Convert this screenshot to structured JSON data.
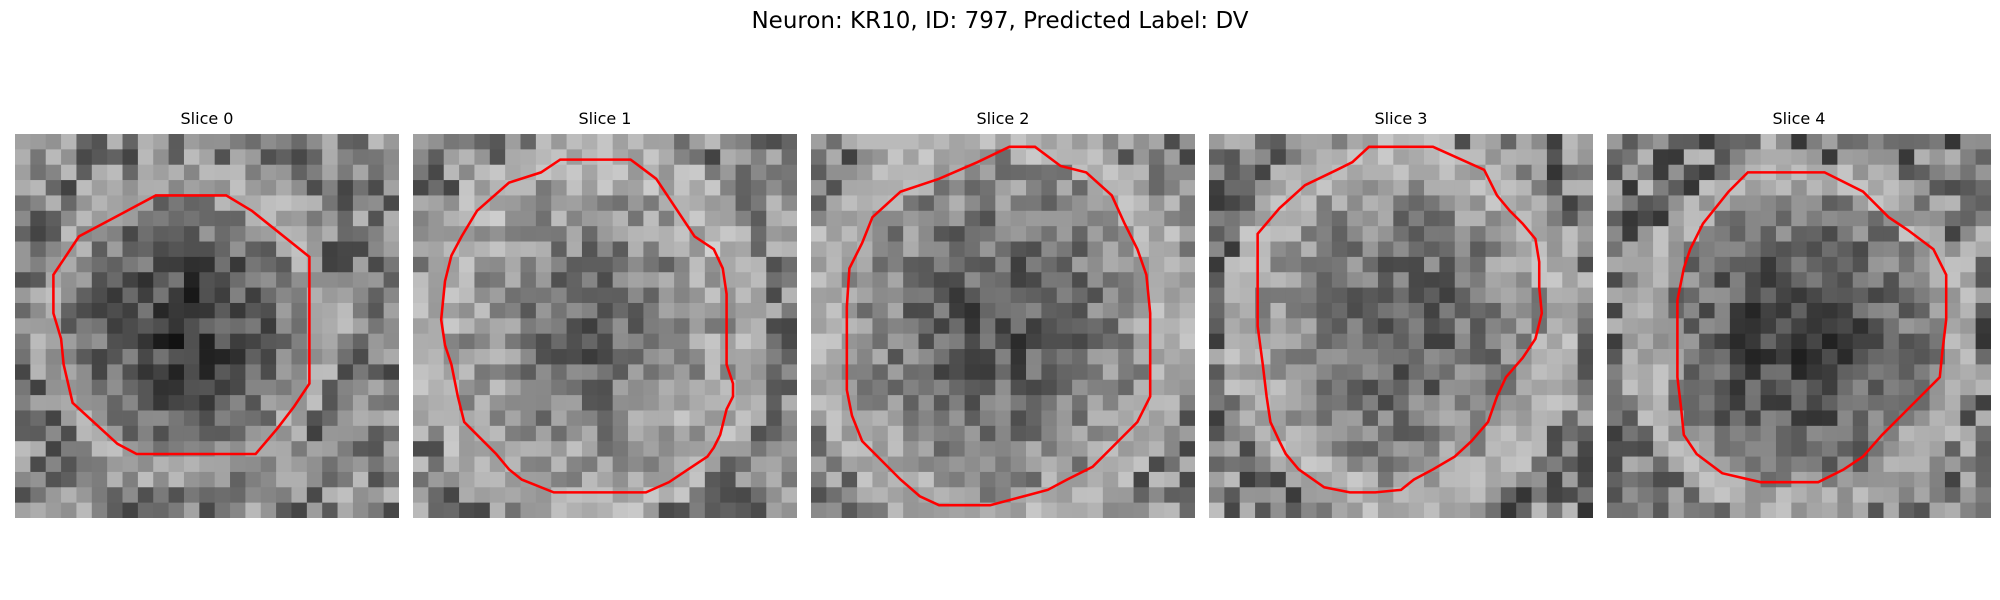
{
  "figure": {
    "title": "Neuron: KR10, ID: 797, Predicted Label: DV"
  },
  "panels": [
    {
      "title": "Slice 0",
      "seed": 11,
      "contour": [
        [
          110,
          48
        ],
        [
          165,
          48
        ],
        [
          185,
          60
        ],
        [
          230,
          96
        ],
        [
          230,
          195
        ],
        [
          218,
          213
        ],
        [
          205,
          230
        ],
        [
          188,
          250
        ],
        [
          168,
          250
        ],
        [
          95,
          250
        ],
        [
          80,
          242
        ],
        [
          45,
          210
        ],
        [
          38,
          180
        ],
        [
          36,
          160
        ],
        [
          30,
          140
        ],
        [
          30,
          110
        ],
        [
          50,
          80
        ]
      ],
      "blob": {
        "cx": 133,
        "cy": 150,
        "rx": 100,
        "ry": 105,
        "dark": [
          0.83,
          0.97
        ],
        "mid": [
          0.45,
          0.75
        ],
        "ring": [
          0.68,
          1.0
        ],
        "bg": [
          0.25,
          0.75
        ]
      },
      "sub": 3.5
    },
    {
      "title": "Slice 1",
      "seed": 23,
      "contour": [
        [
          115,
          20
        ],
        [
          170,
          20
        ],
        [
          190,
          35
        ],
        [
          220,
          80
        ],
        [
          235,
          90
        ],
        [
          242,
          105
        ],
        [
          245,
          125
        ],
        [
          245,
          155
        ],
        [
          245,
          180
        ],
        [
          250,
          195
        ],
        [
          250,
          205
        ],
        [
          245,
          215
        ],
        [
          240,
          235
        ],
        [
          235,
          245
        ],
        [
          230,
          252
        ],
        [
          215,
          262
        ],
        [
          200,
          272
        ],
        [
          182,
          280
        ],
        [
          130,
          280
        ],
        [
          110,
          280
        ],
        [
          85,
          270
        ],
        [
          75,
          262
        ],
        [
          65,
          250
        ],
        [
          50,
          235
        ],
        [
          40,
          225
        ],
        [
          35,
          205
        ],
        [
          30,
          180
        ],
        [
          25,
          165
        ],
        [
          22,
          145
        ],
        [
          25,
          115
        ],
        [
          30,
          95
        ],
        [
          38,
          80
        ],
        [
          50,
          60
        ],
        [
          75,
          38
        ],
        [
          100,
          30
        ]
      ],
      "blob": {
        "cx": 140,
        "cy": 152,
        "rx": 118,
        "ry": 128,
        "dark": [
          0.45,
          0.9
        ],
        "mid": [
          0.35,
          0.8
        ],
        "ring": [
          0.6,
          1.0
        ],
        "bg": [
          0.25,
          0.75
        ]
      },
      "sub": 3.5
    },
    {
      "title": "Slice 2",
      "seed": 37,
      "contour": [
        [
          155,
          10
        ],
        [
          175,
          10
        ],
        [
          195,
          25
        ],
        [
          215,
          30
        ],
        [
          235,
          48
        ],
        [
          245,
          70
        ],
        [
          255,
          90
        ],
        [
          262,
          110
        ],
        [
          265,
          140
        ],
        [
          265,
          205
        ],
        [
          255,
          225
        ],
        [
          235,
          245
        ],
        [
          220,
          260
        ],
        [
          200,
          270
        ],
        [
          185,
          278
        ],
        [
          170,
          282
        ],
        [
          140,
          290
        ],
        [
          120,
          290
        ],
        [
          100,
          290
        ],
        [
          85,
          283
        ],
        [
          70,
          270
        ],
        [
          55,
          255
        ],
        [
          40,
          240
        ],
        [
          32,
          220
        ],
        [
          28,
          200
        ],
        [
          28,
          170
        ],
        [
          28,
          135
        ],
        [
          30,
          105
        ],
        [
          40,
          85
        ],
        [
          48,
          65
        ],
        [
          70,
          45
        ],
        [
          100,
          35
        ],
        [
          130,
          22
        ]
      ],
      "blob": {
        "cx": 146,
        "cy": 150,
        "rx": 130,
        "ry": 140,
        "dark": [
          0.6,
          0.95
        ],
        "mid": [
          0.5,
          0.85
        ],
        "ring": [
          0.6,
          1.0
        ],
        "bg": [
          0.25,
          0.75
        ]
      },
      "sub": 3.5
    },
    {
      "title": "Slice 3",
      "seed": 53,
      "contour": [
        [
          125,
          10
        ],
        [
          175,
          10
        ],
        [
          215,
          28
        ],
        [
          225,
          48
        ],
        [
          235,
          60
        ],
        [
          245,
          70
        ],
        [
          255,
          82
        ],
        [
          258,
          100
        ],
        [
          258,
          120
        ],
        [
          260,
          140
        ],
        [
          255,
          160
        ],
        [
          245,
          175
        ],
        [
          232,
          190
        ],
        [
          225,
          205
        ],
        [
          218,
          225
        ],
        [
          205,
          240
        ],
        [
          192,
          252
        ],
        [
          175,
          262
        ],
        [
          160,
          270
        ],
        [
          150,
          278
        ],
        [
          130,
          280
        ],
        [
          110,
          280
        ],
        [
          90,
          276
        ],
        [
          70,
          262
        ],
        [
          60,
          250
        ],
        [
          55,
          240
        ],
        [
          48,
          225
        ],
        [
          45,
          205
        ],
        [
          42,
          180
        ],
        [
          38,
          150
        ],
        [
          38,
          110
        ],
        [
          38,
          78
        ],
        [
          55,
          58
        ],
        [
          75,
          40
        ],
        [
          100,
          28
        ],
        [
          112,
          22
        ]
      ],
      "blob": {
        "cx": 150,
        "cy": 152,
        "rx": 118,
        "ry": 128,
        "dark": [
          0.55,
          0.92
        ],
        "mid": [
          0.4,
          0.85
        ],
        "ring": [
          0.6,
          1.0
        ],
        "bg": [
          0.25,
          0.8
        ]
      },
      "sub": 3.5
    },
    {
      "title": "Slice 4",
      "seed": 71,
      "contour": [
        [
          110,
          30
        ],
        [
          170,
          30
        ],
        [
          200,
          45
        ],
        [
          210,
          55
        ],
        [
          220,
          65
        ],
        [
          235,
          75
        ],
        [
          255,
          90
        ],
        [
          265,
          110
        ],
        [
          265,
          145
        ],
        [
          262,
          170
        ],
        [
          260,
          190
        ],
        [
          245,
          205
        ],
        [
          230,
          220
        ],
        [
          215,
          235
        ],
        [
          200,
          252
        ],
        [
          185,
          262
        ],
        [
          165,
          272
        ],
        [
          150,
          272
        ],
        [
          120,
          272
        ],
        [
          90,
          265
        ],
        [
          70,
          250
        ],
        [
          60,
          235
        ],
        [
          58,
          215
        ],
        [
          55,
          190
        ],
        [
          55,
          165
        ],
        [
          55,
          130
        ],
        [
          60,
          105
        ],
        [
          65,
          90
        ],
        [
          75,
          70
        ],
        [
          95,
          45
        ]
      ],
      "blob": {
        "cx": 150,
        "cy": 160,
        "rx": 115,
        "ry": 120,
        "dark": [
          0.8,
          0.98
        ],
        "mid": [
          0.45,
          0.8
        ],
        "ring": [
          0.65,
          1.0
        ],
        "bg": [
          0.25,
          0.8
        ]
      },
      "sub": 3.5
    }
  ],
  "style": {
    "contour_color": "#ff0000"
  }
}
